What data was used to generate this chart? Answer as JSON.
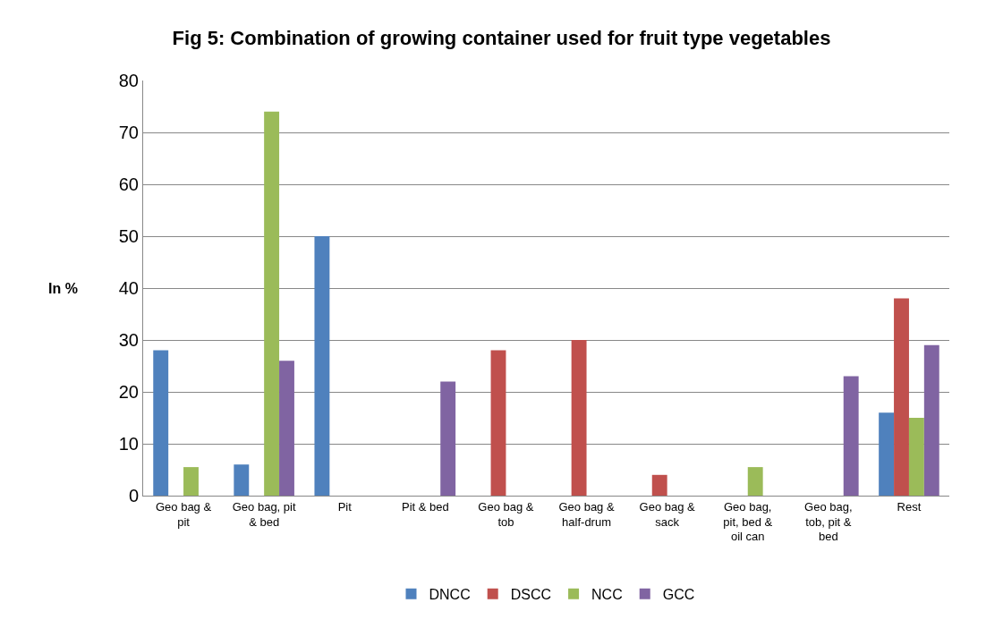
{
  "chart_data": {
    "type": "bar",
    "title": "Fig 5: Combination of growing container used for fruit type vegetables",
    "ylabel": "In %",
    "categories": [
      "Geo bag & pit",
      "Geo bag, pit & bed",
      "Pit",
      "Pit & bed",
      "Geo bag & tob",
      "Geo bag & half-drum",
      "Geo bag & sack",
      "Geo bag, pit, bed & oil can",
      "Geo bag, tob, pit & bed",
      "Rest"
    ],
    "series": [
      {
        "name": "DNCC",
        "color": "#4f81bd",
        "values": [
          28,
          6,
          50,
          0,
          0,
          0,
          0,
          0,
          0,
          16
        ]
      },
      {
        "name": "DSCC",
        "color": "#c0504d",
        "values": [
          0,
          0,
          0,
          0,
          28,
          30,
          4,
          0,
          0,
          38
        ]
      },
      {
        "name": "NCC",
        "color": "#9bbb59",
        "values": [
          5.5,
          74,
          0,
          0,
          0,
          0,
          0,
          5.5,
          0,
          15
        ]
      },
      {
        "name": "GCC",
        "color": "#8064a2",
        "values": [
          0,
          26,
          0,
          22,
          0,
          0,
          0,
          0,
          23,
          29
        ]
      }
    ],
    "ylim": [
      0,
      80
    ],
    "yticks": [
      0,
      10,
      20,
      30,
      40,
      50,
      60,
      70,
      80
    ],
    "grid": "y",
    "legend": "bottom"
  }
}
